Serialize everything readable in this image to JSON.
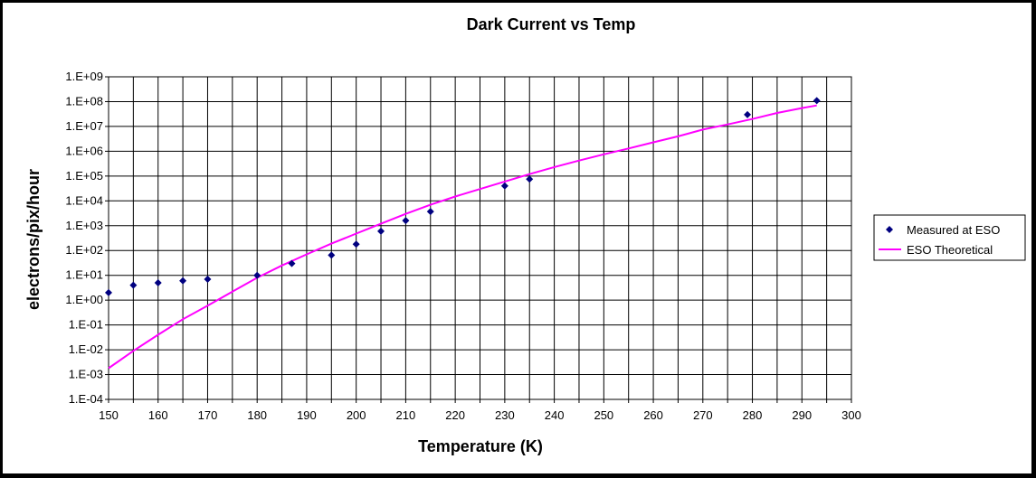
{
  "chart_data": {
    "type": "scatter",
    "title": "Dark Current vs Temp",
    "xlabel": "Temperature (K)",
    "ylabel": "electrons/pix/hour",
    "xlim": [
      150,
      300
    ],
    "ylim_log10": [
      -4,
      9
    ],
    "y_scale": "log",
    "x_ticks": [
      150,
      155,
      160,
      165,
      170,
      175,
      180,
      185,
      190,
      195,
      200,
      205,
      210,
      215,
      220,
      225,
      230,
      235,
      240,
      245,
      250,
      255,
      260,
      265,
      270,
      275,
      280,
      285,
      290,
      295,
      300
    ],
    "x_tick_labels": [
      "150",
      "",
      "160",
      "",
      "170",
      "",
      "180",
      "",
      "190",
      "",
      "200",
      "",
      "210",
      "",
      "220",
      "",
      "230",
      "",
      "240",
      "",
      "250",
      "",
      "260",
      "",
      "270",
      "",
      "280",
      "",
      "290",
      "",
      "300"
    ],
    "y_ticks": [
      9,
      8,
      7,
      6,
      5,
      4,
      3,
      2,
      1,
      0,
      -1,
      -2,
      -3,
      -4
    ],
    "y_tick_labels": [
      "1.E+09",
      "1.E+08",
      "1.E+07",
      "1.E+06",
      "1.E+05",
      "1.E+04",
      "1.E+03",
      "1.E+02",
      "1.E+01",
      "1.E+00",
      "1.E-01",
      "1.E-02",
      "1.E-03",
      "1.E-04"
    ],
    "grid": true,
    "legend_position": "right",
    "series": [
      {
        "name": "Measured at ESO",
        "type": "scatter",
        "marker": "diamond",
        "color": "#000080",
        "x": [
          150,
          155,
          160,
          165,
          170,
          180,
          187,
          195,
          200,
          205,
          210,
          215,
          230,
          235,
          279,
          293
        ],
        "y": [
          2,
          4,
          5,
          6,
          7,
          10,
          30,
          65,
          180,
          600,
          1600,
          3700,
          40000,
          75000,
          30000000,
          110000000
        ]
      },
      {
        "name": "ESO Theoretical",
        "type": "line",
        "color": "#ff00ff",
        "x": [
          150,
          155,
          160,
          165,
          170,
          175,
          180,
          185,
          190,
          195,
          200,
          205,
          210,
          215,
          220,
          225,
          230,
          235,
          240,
          245,
          250,
          255,
          260,
          265,
          270,
          275,
          280,
          285,
          290,
          293
        ],
        "y": [
          0.0018,
          0.009,
          0.04,
          0.17,
          0.6,
          2.2,
          8,
          25,
          70,
          190,
          480,
          1200,
          3000,
          7000,
          15000,
          30000,
          60000,
          120000,
          230000,
          420000,
          750000,
          1300000,
          2300000,
          4000000,
          7500000,
          12000000,
          20000000,
          35000000,
          55000000,
          70000000
        ]
      }
    ]
  }
}
